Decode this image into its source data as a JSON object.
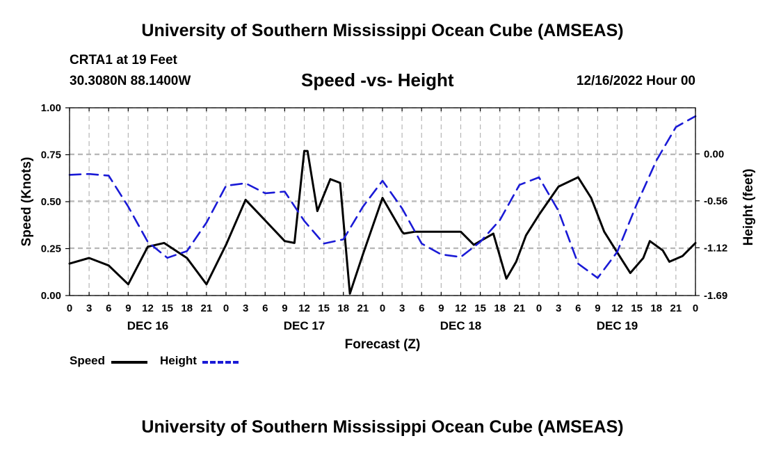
{
  "header": {
    "title": "University of Southern Mississippi Ocean Cube (AMSEAS)",
    "station": "CRTA1 at 19 Feet",
    "coords": "30.3080N  88.1400W",
    "subtitle": "Speed -vs- Height",
    "datetime": "12/16/2022 Hour 00"
  },
  "footer": {
    "title": "University of Southern Mississippi Ocean Cube (AMSEAS)"
  },
  "legend": {
    "speed_label": "Speed",
    "height_label": "Height"
  },
  "colors": {
    "speed": "#000000",
    "height": "#1a1ad6",
    "grid": "#b5b5b5"
  },
  "chart_data": {
    "type": "line",
    "title": "Speed -vs- Height",
    "xlabel": "Forecast (Z)",
    "ylabel": "Speed (Knots)",
    "y2label": "Height (feet)",
    "x_range": [
      0,
      96
    ],
    "x_tick_step": 3,
    "x_tick_labels": [
      "0",
      "3",
      "6",
      "9",
      "12",
      "15",
      "18",
      "21",
      "0",
      "3",
      "6",
      "9",
      "12",
      "15",
      "18",
      "21",
      "0",
      "3",
      "6",
      "9",
      "12",
      "15",
      "18",
      "21",
      "0",
      "3",
      "6",
      "9",
      "12",
      "15",
      "18",
      "21",
      "0"
    ],
    "date_labels": [
      {
        "x": 12,
        "label": "DEC 16"
      },
      {
        "x": 36,
        "label": "DEC 17"
      },
      {
        "x": 60,
        "label": "DEC 18"
      },
      {
        "x": 84,
        "label": "DEC 19"
      }
    ],
    "ylim": [
      0,
      1
    ],
    "y_ticks": [
      0,
      0.25,
      0.5,
      0.75,
      1
    ],
    "y_tick_labels": [
      "0.00",
      "0.25",
      "0.50",
      "0.75",
      "1.00"
    ],
    "y2lim": [
      -1.69,
      0.55
    ],
    "y2_ticks": [
      0,
      -0.56,
      -1.12,
      -1.69
    ],
    "y2_tick_labels": [
      "0.00",
      "-0.56",
      "-1.12",
      "-1.69"
    ],
    "legend_position": "bottom-left",
    "grid": true,
    "series": [
      {
        "name": "Speed",
        "axis": "left",
        "style": "solid",
        "x": [
          0,
          3,
          6,
          9,
          12,
          14.5,
          18,
          21,
          24,
          27,
          30,
          33,
          34.5,
          36,
          36.5,
          38,
          40,
          41.5,
          42,
          43,
          45,
          48,
          51,
          51.3,
          53,
          57,
          60,
          62,
          63,
          65,
          67,
          68.5,
          70,
          72,
          75,
          78,
          80,
          82,
          84,
          86,
          88,
          89,
          91,
          92,
          94,
          96
        ],
        "values": [
          0.17,
          0.2,
          0.16,
          0.06,
          0.26,
          0.28,
          0.2,
          0.06,
          0.27,
          0.51,
          0.4,
          0.29,
          0.28,
          0.77,
          0.77,
          0.45,
          0.62,
          0.6,
          0.4,
          0.01,
          0.22,
          0.52,
          0.34,
          0.33,
          0.34,
          0.34,
          0.34,
          0.27,
          0.29,
          0.33,
          0.09,
          0.18,
          0.32,
          0.43,
          0.58,
          0.63,
          0.52,
          0.34,
          0.23,
          0.12,
          0.2,
          0.29,
          0.24,
          0.18,
          0.21,
          0.28
        ]
      },
      {
        "name": "Height",
        "axis": "right",
        "style": "dashed",
        "x": [
          0,
          3,
          6,
          9,
          12,
          15,
          18,
          21,
          24,
          27,
          30,
          33,
          36,
          39,
          42,
          45,
          48,
          51,
          54,
          57,
          60,
          63,
          66,
          69,
          72,
          75,
          78,
          81,
          84,
          87,
          90,
          93,
          96
        ],
        "values": [
          -0.25,
          -0.24,
          -0.26,
          -0.63,
          -1.05,
          -1.24,
          -1.16,
          -0.82,
          -0.38,
          -0.35,
          -0.47,
          -0.45,
          -0.8,
          -1.07,
          -1.02,
          -0.63,
          -0.32,
          -0.65,
          -1.07,
          -1.2,
          -1.23,
          -1.05,
          -0.79,
          -0.37,
          -0.28,
          -0.68,
          -1.31,
          -1.48,
          -1.17,
          -0.6,
          -0.08,
          0.32,
          0.45
        ]
      }
    ]
  }
}
